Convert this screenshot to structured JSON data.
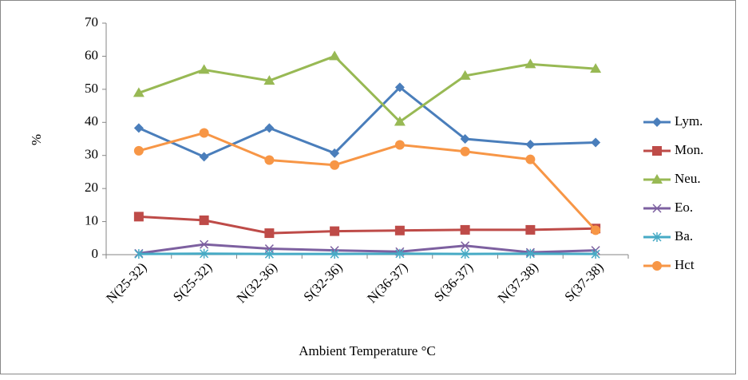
{
  "chart_data": {
    "type": "line",
    "y_label": "%",
    "x_label": "Ambient Temperature °C",
    "categories": [
      "N(25-32)",
      "S(25-32)",
      "N(32-36)",
      "S(32-36)",
      "N(36-37)",
      "S(36-37)",
      "N(37-38)",
      "S(37-38)"
    ],
    "series": [
      {
        "name": "Lym.",
        "color": "#4a7ebb",
        "marker": "diamond",
        "values": [
          38.3,
          29.6,
          38.3,
          30.7,
          50.6,
          35.0,
          33.3,
          33.9
        ]
      },
      {
        "name": "Mon.",
        "color": "#be4b48",
        "marker": "square",
        "values": [
          11.5,
          10.4,
          6.5,
          7.1,
          7.3,
          7.5,
          7.5,
          7.9
        ]
      },
      {
        "name": "Neu.",
        "color": "#98b954",
        "marker": "triangle",
        "values": [
          48.9,
          55.9,
          52.6,
          60.0,
          40.2,
          54.1,
          57.6,
          56.2
        ]
      },
      {
        "name": "Eo.",
        "color": "#7d60a0",
        "marker": "x",
        "values": [
          0.4,
          3.1,
          1.8,
          1.3,
          0.9,
          2.7,
          0.7,
          1.3
        ]
      },
      {
        "name": "Ba.",
        "color": "#46aac5",
        "marker": "star",
        "values": [
          0.2,
          0.3,
          0.2,
          0.2,
          0.3,
          0.2,
          0.3,
          0.2
        ]
      },
      {
        "name": "Hct",
        "color": "#f79646",
        "marker": "circle",
        "values": [
          31.4,
          36.8,
          28.6,
          27.1,
          33.2,
          31.2,
          28.8,
          7.4
        ]
      }
    ],
    "ylim": [
      0,
      70
    ],
    "yticks": [
      0,
      10,
      20,
      30,
      40,
      50,
      60,
      70
    ],
    "grid": false,
    "legend": "right"
  }
}
